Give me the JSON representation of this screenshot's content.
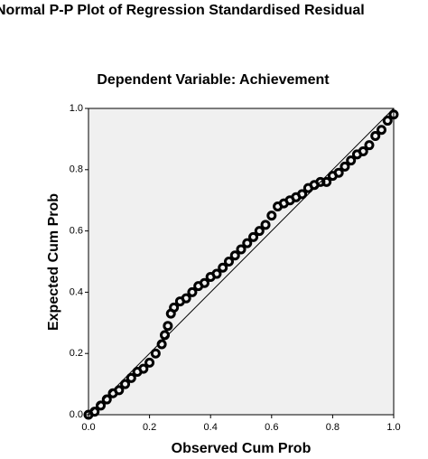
{
  "chart_data": {
    "type": "scatter",
    "title": "Normal P-P Plot of Regression Standardised Residual",
    "subtitle": "Dependent Variable: Achievement",
    "x_label": "Observed Cum Prob",
    "y_label": "Expected Cum Prob",
    "x": [
      0,
      0.02,
      0.04,
      0.06,
      0.08,
      0.1,
      0.12,
      0.14,
      0.16,
      0.18,
      0.2,
      0.22,
      0.24,
      0.25,
      0.26,
      0.27,
      0.28,
      0.3,
      0.32,
      0.34,
      0.36,
      0.38,
      0.4,
      0.42,
      0.44,
      0.46,
      0.48,
      0.5,
      0.52,
      0.54,
      0.56,
      0.58,
      0.6,
      0.62,
      0.64,
      0.66,
      0.68,
      0.7,
      0.72,
      0.74,
      0.76,
      0.78,
      0.8,
      0.82,
      0.84,
      0.86,
      0.88,
      0.9,
      0.92,
      0.94,
      0.96,
      0.98,
      1.0
    ],
    "values": [
      0,
      0.01,
      0.03,
      0.05,
      0.07,
      0.08,
      0.1,
      0.12,
      0.14,
      0.15,
      0.17,
      0.2,
      0.23,
      0.26,
      0.29,
      0.33,
      0.35,
      0.37,
      0.38,
      0.4,
      0.42,
      0.43,
      0.45,
      0.46,
      0.48,
      0.5,
      0.52,
      0.54,
      0.56,
      0.58,
      0.6,
      0.62,
      0.65,
      0.68,
      0.69,
      0.7,
      0.71,
      0.72,
      0.74,
      0.75,
      0.76,
      0.76,
      0.78,
      0.79,
      0.81,
      0.83,
      0.85,
      0.86,
      0.88,
      0.91,
      0.93,
      0.96,
      0.98
    ],
    "color": "#000000",
    "xlim": [
      0,
      1
    ],
    "ylim": [
      0,
      1
    ],
    "xticks": [
      {
        "value": 0,
        "label": "0.0"
      },
      0.2,
      0.4,
      0.6,
      0.8,
      {
        "value": 1,
        "label": "1.0"
      }
    ],
    "yticks": [
      {
        "value": 0,
        "label": "0.0"
      },
      0.2,
      0.4,
      0.6,
      0.8,
      {
        "value": 1,
        "label": "1.0"
      }
    ],
    "grid": false
  }
}
